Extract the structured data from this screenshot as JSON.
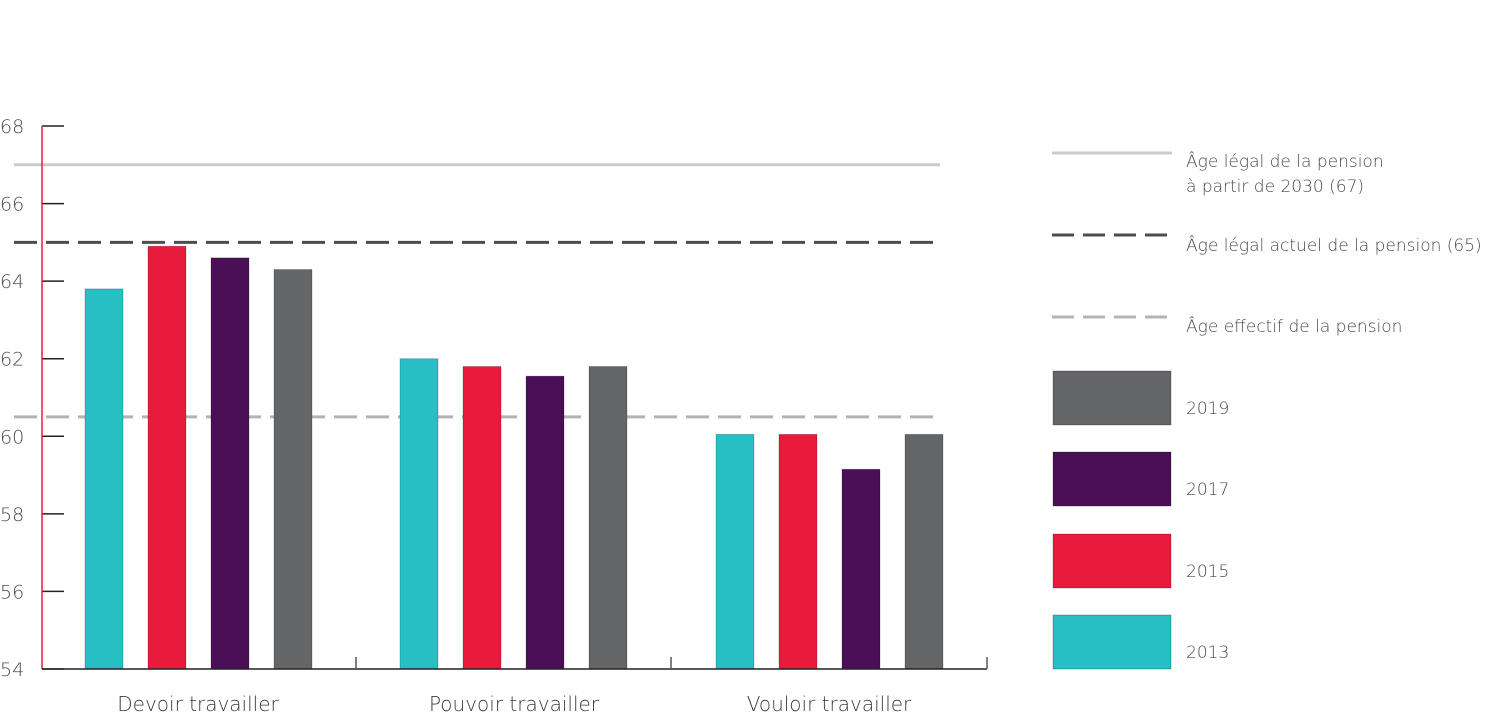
{
  "chart_data": {
    "type": "bar",
    "categories": [
      "Devoir travailler",
      "Pouvoir travailler",
      "Vouloir travailler"
    ],
    "series": [
      {
        "name": "2013",
        "color": "#26bfc4",
        "values": [
          63.8,
          62.0,
          60.05
        ]
      },
      {
        "name": "2015",
        "color": "#e91b3d",
        "values": [
          64.9,
          61.8,
          60.05
        ]
      },
      {
        "name": "2017",
        "color": "#4a0f57",
        "values": [
          64.6,
          61.55,
          59.15
        ]
      },
      {
        "name": "2019",
        "color": "#646567",
        "values": [
          64.3,
          61.8,
          60.05
        ]
      }
    ],
    "reference_lines": [
      {
        "label_lines": [
          "Âge légal de la pension",
          "à partir de 2030 (67)"
        ],
        "value": 67,
        "style": "solid",
        "color": "#cccccc"
      },
      {
        "label_lines": [
          "Âge légal actuel de la pension (65)"
        ],
        "value": 65,
        "style": "dashed",
        "color": "#4d4d4d"
      },
      {
        "label_lines": [
          "Âge effectif de la pension"
        ],
        "value": 60.5,
        "style": "dashed",
        "color": "#b3b3b3"
      }
    ],
    "ylim": [
      54,
      68
    ],
    "yticks": [
      "54",
      "56",
      "58",
      "60",
      "62",
      "64",
      "66",
      "68"
    ],
    "title": "",
    "xlabel": "",
    "ylabel": "",
    "legend_position": "right",
    "axis_color": "#e91b3d"
  }
}
